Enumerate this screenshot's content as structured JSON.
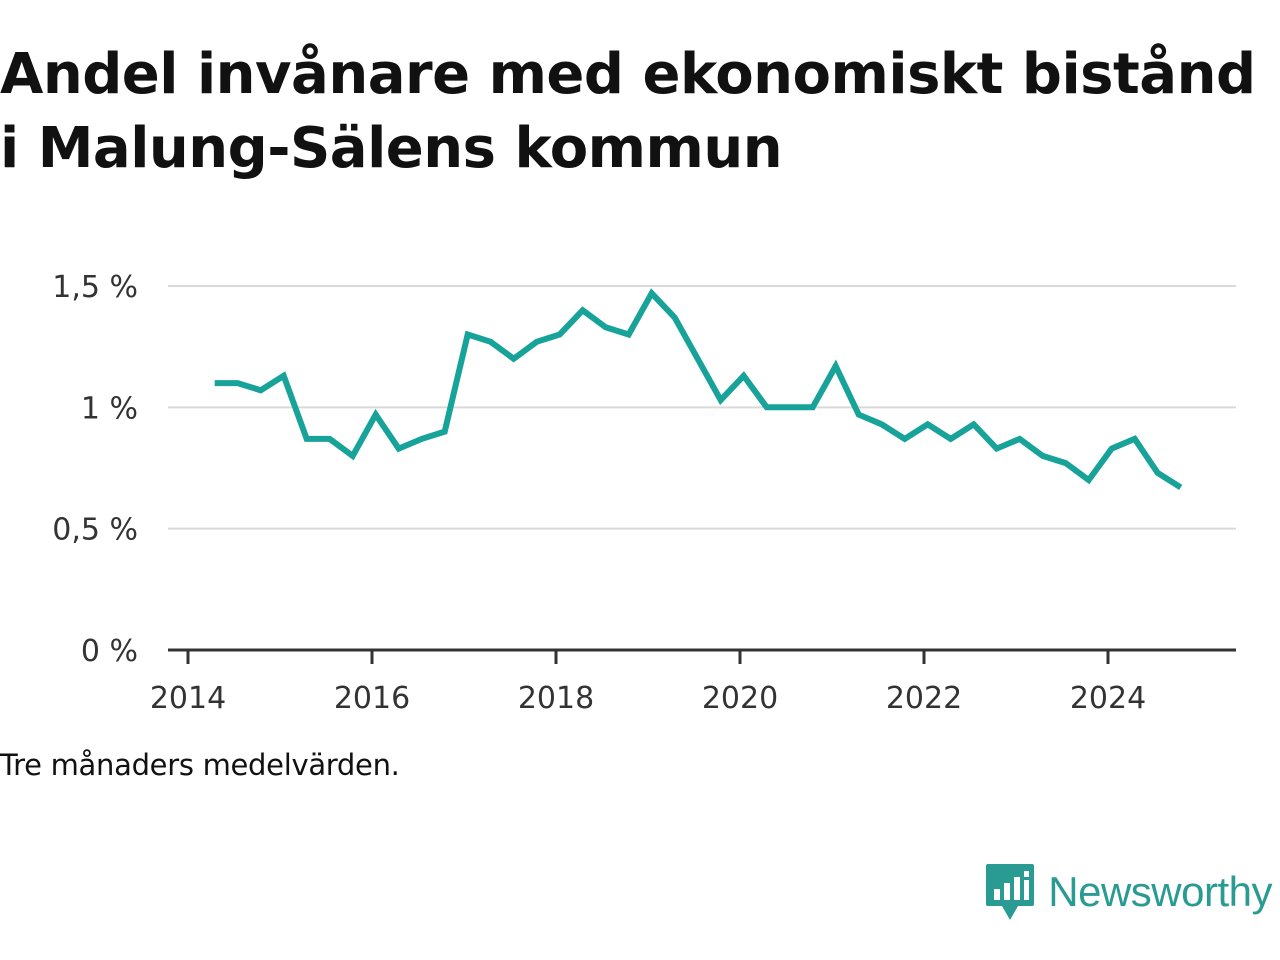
{
  "title": "Andel invånare med ekonomiskt bistånd i Malung-Sälens kommun",
  "note": "Tre månaders medelvärden.",
  "brand": {
    "name": "Newsworthy",
    "icon": "newsworthy-logo-icon",
    "color": "#2a9b93"
  },
  "chart_data": {
    "type": "line",
    "title": "Andel invånare med ekonomiskt bistånd i Malung-Sälens kommun",
    "xlabel": "",
    "ylabel": "",
    "line_color": "#17a399",
    "grid": true,
    "ylim": [
      0,
      1.5
    ],
    "xlim": [
      2014,
      2025.25
    ],
    "y_ticks": [
      {
        "value": 0,
        "label": "0 %"
      },
      {
        "value": 0.5,
        "label": "0,5 %"
      },
      {
        "value": 1,
        "label": "1 %"
      },
      {
        "value": 1.5,
        "label": "1,5 %"
      }
    ],
    "x_ticks": [
      {
        "value": 2014,
        "label": "2014"
      },
      {
        "value": 2016,
        "label": "2016"
      },
      {
        "value": 2018,
        "label": "2018"
      },
      {
        "value": 2020,
        "label": "2020"
      },
      {
        "value": 2022,
        "label": "2022"
      },
      {
        "value": 2024,
        "label": "2024"
      }
    ],
    "series": [
      {
        "x": [
          2014.29,
          2014.54,
          2014.79,
          2015.04,
          2015.29,
          2015.54,
          2015.79,
          2016.04,
          2016.29,
          2016.54,
          2016.79,
          2017.04,
          2017.29,
          2017.54,
          2017.79,
          2018.04,
          2018.29,
          2018.54,
          2018.79,
          2019.04,
          2019.29,
          2019.54,
          2019.79,
          2020.04,
          2020.29,
          2020.54,
          2020.79,
          2021.04,
          2021.29,
          2021.54,
          2021.79,
          2022.04,
          2022.29,
          2022.54,
          2022.79,
          2023.04,
          2023.29,
          2023.54,
          2023.79,
          2024.04,
          2024.29,
          2024.54,
          2024.79
        ],
        "values": [
          1.1,
          1.1,
          1.07,
          1.13,
          0.87,
          0.87,
          0.8,
          0.97,
          0.83,
          0.87,
          0.9,
          1.3,
          1.27,
          1.2,
          1.27,
          1.3,
          1.4,
          1.33,
          1.3,
          1.47,
          1.37,
          1.2,
          1.03,
          1.13,
          1.0,
          1.0,
          1.0,
          1.17,
          0.97,
          0.93,
          0.87,
          0.93,
          0.87,
          0.93,
          0.83,
          0.87,
          0.8,
          0.77,
          0.7,
          0.83,
          0.87,
          0.73,
          0.67
        ]
      }
    ]
  }
}
